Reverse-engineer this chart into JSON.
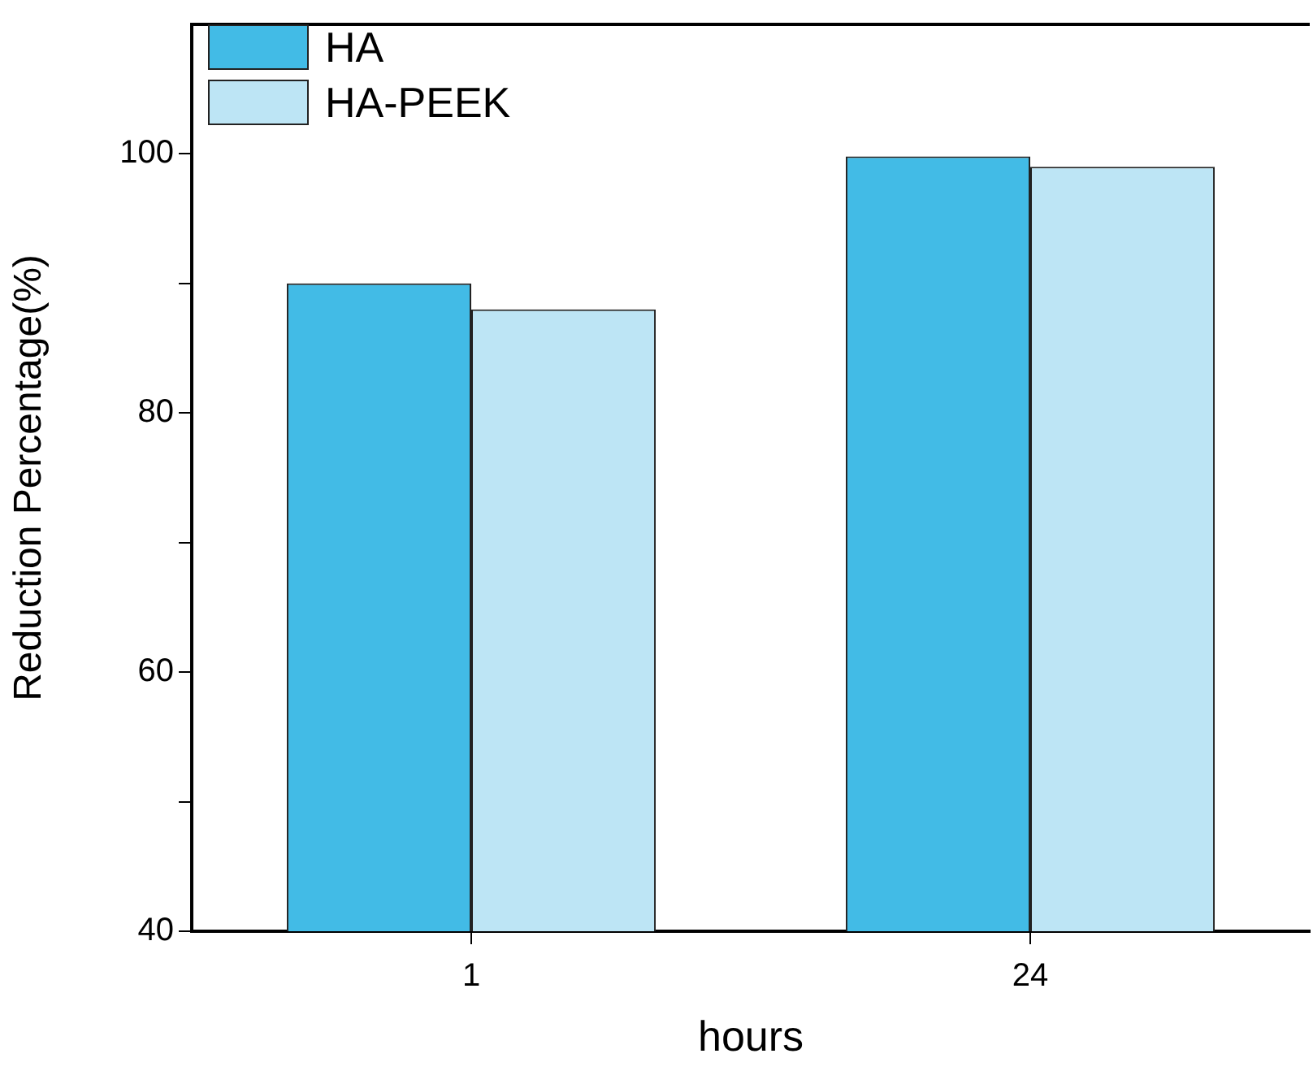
{
  "chart_data": {
    "type": "bar",
    "xlabel": "hours",
    "ylabel": "Reduction Percentage(%)",
    "categories": [
      "1",
      "24"
    ],
    "series": [
      {
        "name": "HA",
        "color": "#42bbe6",
        "values": [
          90,
          99.8
        ]
      },
      {
        "name": "HA-PEEK",
        "color": "#bde5f5",
        "values": [
          88,
          99
        ]
      }
    ],
    "ylim": [
      40,
      110
    ],
    "yticks": [
      40,
      {
        "value": 50,
        "label": null
      },
      60,
      {
        "value": 70,
        "label": null
      },
      80,
      {
        "value": 90,
        "label": null
      },
      100
    ],
    "grid": false,
    "legend": "top left"
  }
}
